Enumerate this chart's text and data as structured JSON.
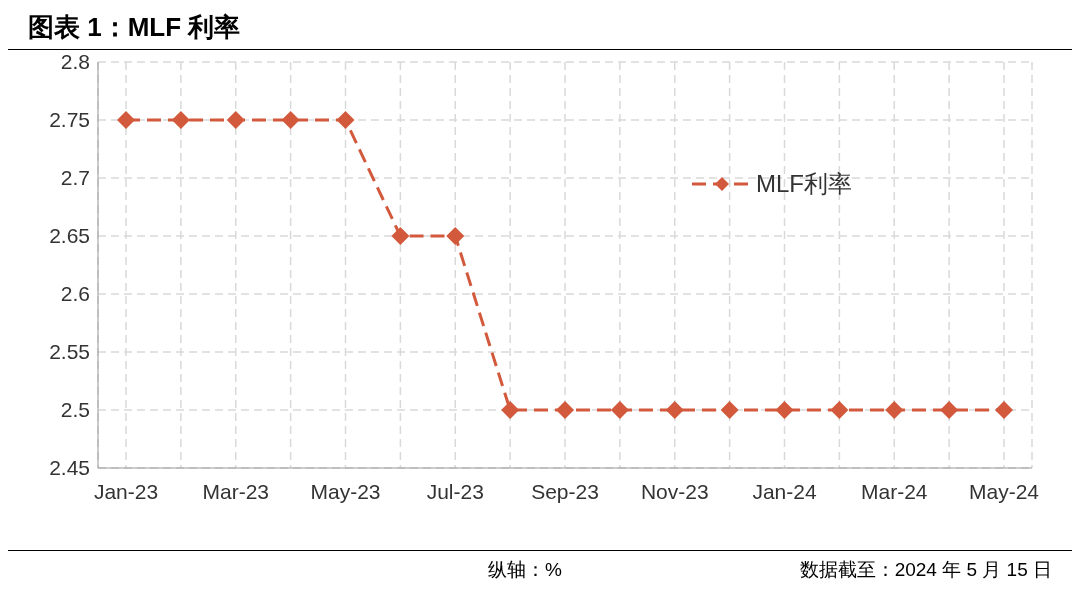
{
  "chart_data": {
    "type": "line",
    "title": "图表 1：MLF 利率",
    "categories": [
      "Jan-23",
      null,
      "Mar-23",
      null,
      "May-23",
      null,
      "Jul-23",
      null,
      "Sep-23",
      null,
      "Nov-23",
      null,
      "Jan-24",
      null,
      "Mar-24",
      null,
      "May-24"
    ],
    "series": [
      {
        "name": "MLF利率",
        "color": "#d2593c",
        "values": [
          2.75,
          2.75,
          2.75,
          2.75,
          2.75,
          2.65,
          2.65,
          2.5,
          2.5,
          2.5,
          2.5,
          2.5,
          2.5,
          2.5,
          2.5,
          2.5,
          2.5
        ]
      }
    ],
    "ylim": [
      2.45,
      2.8
    ],
    "yticks": [
      2.45,
      2.5,
      2.55,
      2.6,
      2.65,
      2.7,
      2.75,
      2.8
    ],
    "grid": true,
    "legend": "top right",
    "marker": "diamond",
    "line_style": "dashed",
    "annotations": [
      "纵轴：%",
      "数据截至：2024 年 5 月 15 日"
    ]
  }
}
